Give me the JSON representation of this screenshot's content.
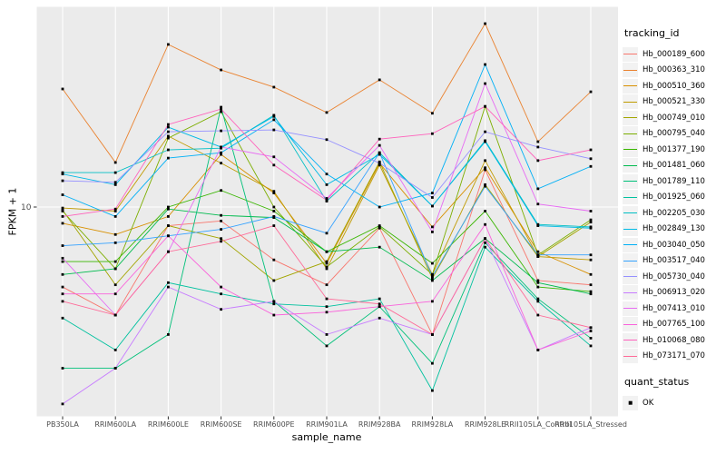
{
  "y_axis": {
    "title": "FPKM + 1",
    "tick_label": "10"
  },
  "x_axis": {
    "title": "sample_name"
  },
  "legend": {
    "title": "tracking_id"
  },
  "quant_legend": {
    "title": "quant_status",
    "ok_label": "OK",
    "marker": "black-square"
  },
  "style": {
    "panel_background": "#EBEBEB",
    "gridline_color": "#FFFFFF",
    "tick_text_color": "#4D4D4D",
    "tick_mark_color": "#333333",
    "marker_color": "#000000",
    "legend_key_background": "#F2F2F2"
  },
  "chart_data": {
    "type": "line",
    "title": "",
    "xlabel": "sample_name",
    "ylabel": "FPKM + 1",
    "y_scale": "log10",
    "y_tick_labels": [
      "10"
    ],
    "ylim": [
      1.3,
      75
    ],
    "grid": "major-white-on-grey",
    "legend_position": "right",
    "legend_title": "tracking_id",
    "marker": "black-square",
    "categories": [
      "PB350LA",
      "RRIM600LA",
      "RRIM600LE",
      "RRIM600SE",
      "RRIM600PE",
      "RRIM901LA",
      "RRIM928BA",
      "RRIM928LA",
      "RRIM928LE",
      "RRII105LA_Control",
      "RRII105LA_Stressed"
    ],
    "series": [
      {
        "name": "Hb_000189_600",
        "color": "#F8766D",
        "values": [
          4.5,
          3.4,
          8.3,
          8.7,
          5.9,
          4.6,
          8.1,
          2.8,
          14.5,
          4.8,
          4.6
        ]
      },
      {
        "name": "Hb_000363_310",
        "color": "#EA8331",
        "values": [
          32.5,
          15.6,
          50.7,
          39.3,
          33.1,
          25.7,
          35.6,
          25.5,
          62.4,
          19.2,
          31.6
        ]
      },
      {
        "name": "Hb_000510_360",
        "color": "#D89000",
        "values": [
          8.5,
          7.6,
          9.1,
          16.9,
          11.5,
          5.7,
          15.5,
          8.2,
          14.8,
          6.4,
          5.1
        ]
      },
      {
        "name": "Hb_000521_330",
        "color": "#C09B00",
        "values": [
          9.9,
          9.6,
          20.3,
          15.5,
          11.7,
          5.4,
          15.2,
          5.1,
          15.9,
          6.1,
          5.9
        ]
      },
      {
        "name": "Hb_000749_010",
        "color": "#A3A500",
        "values": [
          9.7,
          4.6,
          8.3,
          7.3,
          4.8,
          5.8,
          15.7,
          4.9,
          12.5,
          6.1,
          8.6
        ]
      },
      {
        "name": "Hb_000795_040",
        "color": "#7CAE00",
        "values": [
          9.6,
          5.4,
          19.9,
          25.9,
          10.0,
          5.5,
          8.2,
          5.1,
          27.3,
          6.2,
          8.8
        ]
      },
      {
        "name": "Hb_001377_190",
        "color": "#39B600",
        "values": [
          5.8,
          5.8,
          10.0,
          11.8,
          9.6,
          6.4,
          8.3,
          5.7,
          9.6,
          4.5,
          4.3
        ]
      },
      {
        "name": "Hb_001481_060",
        "color": "#00BB4E",
        "values": [
          5.1,
          5.4,
          9.8,
          9.2,
          9.0,
          6.4,
          6.7,
          4.8,
          7.3,
          4.7,
          4.2
        ]
      },
      {
        "name": "Hb_001789_110",
        "color": "#00C079",
        "values": [
          2.0,
          2.0,
          2.8,
          27.1,
          3.9,
          2.5,
          3.7,
          2.1,
          7.0,
          4.0,
          2.7
        ]
      },
      {
        "name": "Hb_001925_060",
        "color": "#00C19F",
        "values": [
          3.3,
          2.4,
          4.7,
          4.2,
          3.8,
          3.7,
          4.0,
          1.6,
          6.7,
          3.9,
          2.5
        ]
      },
      {
        "name": "Hb_002205_030",
        "color": "#00BFC4",
        "values": [
          14.1,
          14.1,
          17.7,
          18.0,
          25.0,
          10.6,
          17.2,
          10.1,
          19.4,
          8.4,
          8.2
        ]
      },
      {
        "name": "Hb_002849_130",
        "color": "#00BAE5",
        "values": [
          13.9,
          12.5,
          22.2,
          18.2,
          24.7,
          12.5,
          16.9,
          10.1,
          19.2,
          8.3,
          8.1
        ]
      },
      {
        "name": "Hb_003040_050",
        "color": "#00B0F6",
        "values": [
          11.3,
          9.1,
          16.3,
          17.2,
          23.9,
          13.9,
          10.0,
          11.5,
          41.5,
          12.0,
          15.0
        ]
      },
      {
        "name": "Hb_003517_040",
        "color": "#35A2FF",
        "values": [
          6.8,
          7.0,
          7.5,
          8.0,
          9.1,
          7.7,
          17.2,
          5.0,
          12.3,
          6.2,
          6.2
        ]
      },
      {
        "name": "Hb_005730_040",
        "color": "#9590FF",
        "values": [
          13.0,
          12.8,
          21.2,
          21.4,
          21.6,
          19.6,
          15.5,
          11.0,
          21.2,
          18.2,
          16.2
        ]
      },
      {
        "name": "Hb_006913_020",
        "color": "#C77CFF",
        "values": [
          1.4,
          2.0,
          4.5,
          3.6,
          3.9,
          2.8,
          3.3,
          2.8,
          7.3,
          2.4,
          3.0
        ]
      },
      {
        "name": "Hb_007413_010",
        "color": "#E76BF3",
        "values": [
          6.0,
          3.4,
          6.4,
          18.2,
          16.5,
          10.9,
          18.5,
          7.8,
          34.3,
          10.3,
          9.6
        ]
      },
      {
        "name": "Hb_007765_100",
        "color": "#FA62DB",
        "values": [
          4.2,
          4.2,
          7.5,
          4.5,
          3.4,
          3.5,
          3.7,
          3.9,
          8.4,
          2.4,
          2.9
        ]
      },
      {
        "name": "Hb_010068_080",
        "color": "#FF62BC",
        "values": [
          9.1,
          9.8,
          22.8,
          26.6,
          15.2,
          10.7,
          19.7,
          20.8,
          27.3,
          15.9,
          17.7
        ]
      },
      {
        "name": "Hb_073171_070",
        "color": "#FF6A98",
        "values": [
          3.9,
          3.4,
          6.4,
          7.1,
          8.3,
          4.0,
          3.8,
          2.8,
          7.3,
          3.4,
          3.0
        ]
      }
    ]
  }
}
